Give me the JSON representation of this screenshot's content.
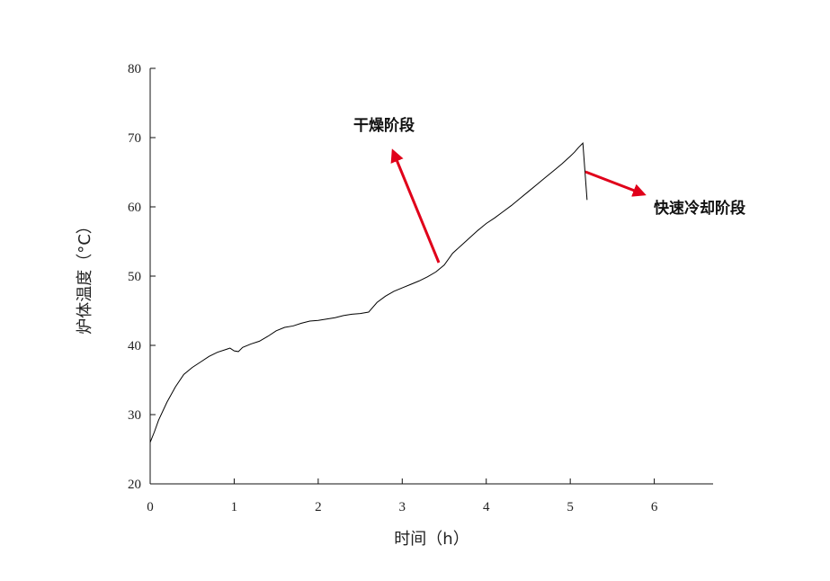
{
  "chart_data": {
    "type": "line",
    "xlabel": "时间（h）",
    "ylabel": "炉体温度（°C）",
    "xlim": [
      0,
      6.7
    ],
    "ylim": [
      20,
      80
    ],
    "xticks": [
      0,
      1,
      2,
      3,
      4,
      5,
      6
    ],
    "yticks": [
      20,
      30,
      40,
      50,
      60,
      70,
      80
    ],
    "grid": false,
    "legend": "none",
    "series": [
      {
        "color": "#000000",
        "x": [
          0,
          0.05,
          0.1,
          0.2,
          0.3,
          0.4,
          0.5,
          0.6,
          0.7,
          0.8,
          0.9,
          0.95,
          1.0,
          1.05,
          1.1,
          1.2,
          1.3,
          1.4,
          1.5,
          1.6,
          1.7,
          1.8,
          1.9,
          2.0,
          2.1,
          2.2,
          2.3,
          2.4,
          2.5,
          2.6,
          2.7,
          2.8,
          2.9,
          3.0,
          3.1,
          3.2,
          3.3,
          3.4,
          3.5,
          3.6,
          3.7,
          3.8,
          3.9,
          4.0,
          4.1,
          4.2,
          4.3,
          4.4,
          4.5,
          4.6,
          4.7,
          4.8,
          4.9,
          5.0,
          5.05,
          5.1,
          5.15,
          5.2
        ],
        "y": [
          26,
          27.5,
          29.2,
          31.8,
          34.0,
          35.8,
          36.8,
          37.6,
          38.4,
          39.0,
          39.4,
          39.6,
          39.2,
          39.1,
          39.7,
          40.2,
          40.6,
          41.3,
          42.1,
          42.6,
          42.8,
          43.2,
          43.5,
          43.6,
          43.8,
          44.0,
          44.3,
          44.5,
          44.6,
          44.8,
          46.2,
          47.1,
          47.8,
          48.3,
          48.8,
          49.3,
          49.9,
          50.6,
          51.6,
          53.3,
          54.4,
          55.5,
          56.6,
          57.6,
          58.4,
          59.3,
          60.2,
          61.2,
          62.2,
          63.2,
          64.2,
          65.2,
          66.2,
          67.3,
          67.9,
          68.6,
          69.2,
          61.0
        ]
      }
    ],
    "annotations": [
      {
        "text": "干燥阶段",
        "color": "#e0001a"
      },
      {
        "text": "快速冷却阶段",
        "color": "#e0001a"
      }
    ]
  }
}
